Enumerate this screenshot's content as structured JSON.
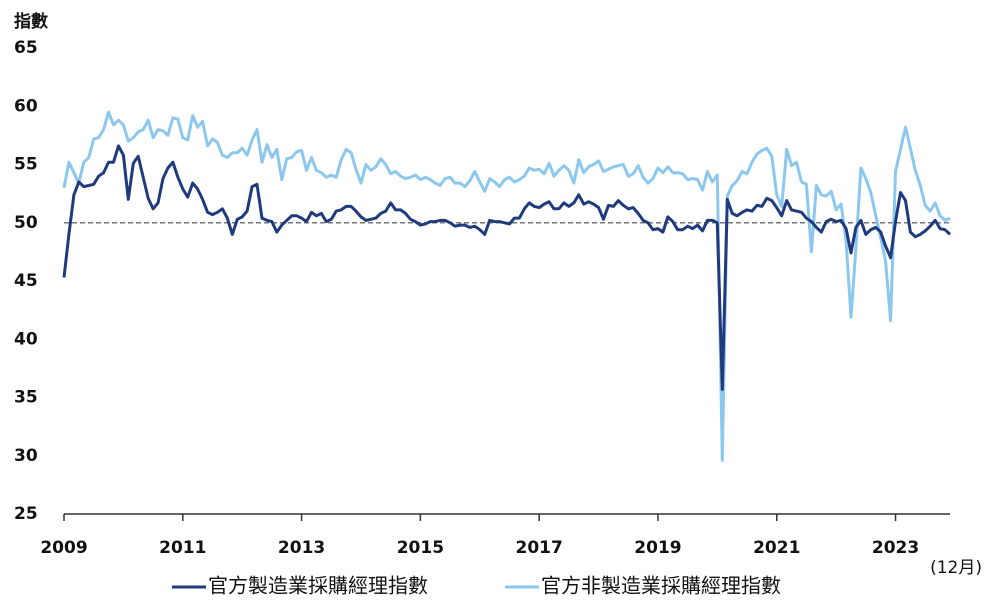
{
  "chart_data": {
    "type": "line",
    "y_label": "指數",
    "annotation": "(12月)",
    "xlim": [
      2009,
      2023.917
    ],
    "xticks": [
      2009,
      2011,
      2013,
      2015,
      2017,
      2019,
      2021,
      2023
    ],
    "ylim": [
      25,
      65
    ],
    "yticks": [
      25,
      30,
      35,
      40,
      45,
      50,
      55,
      60,
      65
    ],
    "reference_line": 50,
    "legend": "bottom",
    "x": [
      2009,
      2009.083,
      2009.167,
      2009.25,
      2009.333,
      2009.417,
      2009.5,
      2009.583,
      2009.667,
      2009.75,
      2009.833,
      2009.917,
      2010,
      2010.083,
      2010.167,
      2010.25,
      2010.333,
      2010.417,
      2010.5,
      2010.583,
      2010.667,
      2010.75,
      2010.833,
      2010.917,
      2011,
      2011.083,
      2011.167,
      2011.25,
      2011.333,
      2011.417,
      2011.5,
      2011.583,
      2011.667,
      2011.75,
      2011.833,
      2011.917,
      2012,
      2012.083,
      2012.167,
      2012.25,
      2012.333,
      2012.417,
      2012.5,
      2012.583,
      2012.667,
      2012.75,
      2012.833,
      2012.917,
      2013,
      2013.083,
      2013.167,
      2013.25,
      2013.333,
      2013.417,
      2013.5,
      2013.583,
      2013.667,
      2013.75,
      2013.833,
      2013.917,
      2014,
      2014.083,
      2014.167,
      2014.25,
      2014.333,
      2014.417,
      2014.5,
      2014.583,
      2014.667,
      2014.75,
      2014.833,
      2014.917,
      2015,
      2015.083,
      2015.167,
      2015.25,
      2015.333,
      2015.417,
      2015.5,
      2015.583,
      2015.667,
      2015.75,
      2015.833,
      2015.917,
      2016,
      2016.083,
      2016.167,
      2016.25,
      2016.333,
      2016.417,
      2016.5,
      2016.583,
      2016.667,
      2016.75,
      2016.833,
      2016.917,
      2017,
      2017.083,
      2017.167,
      2017.25,
      2017.333,
      2017.417,
      2017.5,
      2017.583,
      2017.667,
      2017.75,
      2017.833,
      2017.917,
      2018,
      2018.083,
      2018.167,
      2018.25,
      2018.333,
      2018.417,
      2018.5,
      2018.583,
      2018.667,
      2018.75,
      2018.833,
      2018.917,
      2019,
      2019.083,
      2019.167,
      2019.25,
      2019.333,
      2019.417,
      2019.5,
      2019.583,
      2019.667,
      2019.75,
      2019.833,
      2019.917,
      2020,
      2020.083,
      2020.167,
      2020.25,
      2020.333,
      2020.417,
      2020.5,
      2020.583,
      2020.667,
      2020.75,
      2020.833,
      2020.917,
      2021,
      2021.083,
      2021.167,
      2021.25,
      2021.333,
      2021.417,
      2021.5,
      2021.583,
      2021.667,
      2021.75,
      2021.833,
      2021.917,
      2022,
      2022.083,
      2022.167,
      2022.25,
      2022.333,
      2022.417,
      2022.5,
      2022.583,
      2022.667,
      2022.75,
      2022.833,
      2022.917,
      2023,
      2023.083,
      2023.167,
      2023.25,
      2023.333,
      2023.417,
      2023.5,
      2023.583,
      2023.667,
      2023.75,
      2023.833,
      2023.917
    ],
    "series": [
      {
        "name": "官方製造業採購經理指數",
        "color": "#1f3b7d",
        "values": [
          45.3,
          49.0,
          52.4,
          53.5,
          53.1,
          53.2,
          53.3,
          54.0,
          54.3,
          55.2,
          55.2,
          56.6,
          55.8,
          52.0,
          55.1,
          55.7,
          53.9,
          52.1,
          51.2,
          51.7,
          53.8,
          54.7,
          55.2,
          53.9,
          52.9,
          52.2,
          53.4,
          52.9,
          52.0,
          50.9,
          50.7,
          50.9,
          51.2,
          50.4,
          49.0,
          50.3,
          50.5,
          51.0,
          53.1,
          53.3,
          50.4,
          50.2,
          50.1,
          49.2,
          49.8,
          50.2,
          50.6,
          50.6,
          50.4,
          50.1,
          50.9,
          50.6,
          50.8,
          50.1,
          50.3,
          51.0,
          51.1,
          51.4,
          51.4,
          51.0,
          50.5,
          50.2,
          50.3,
          50.4,
          50.8,
          51.0,
          51.7,
          51.1,
          51.1,
          50.8,
          50.3,
          50.1,
          49.8,
          49.9,
          50.1,
          50.1,
          50.2,
          50.2,
          50.0,
          49.7,
          49.8,
          49.8,
          49.6,
          49.7,
          49.4,
          49.0,
          50.2,
          50.1,
          50.1,
          50.0,
          49.9,
          50.4,
          50.4,
          51.2,
          51.7,
          51.4,
          51.3,
          51.6,
          51.8,
          51.2,
          51.2,
          51.7,
          51.4,
          51.7,
          52.4,
          51.6,
          51.8,
          51.6,
          51.3,
          50.3,
          51.5,
          51.4,
          51.9,
          51.5,
          51.2,
          51.3,
          50.8,
          50.2,
          50.0,
          49.4,
          49.5,
          49.2,
          50.5,
          50.1,
          49.4,
          49.4,
          49.7,
          49.5,
          49.8,
          49.3,
          50.2,
          50.2,
          50.0,
          35.7,
          52.0,
          50.8,
          50.6,
          50.9,
          51.1,
          51.0,
          51.5,
          51.4,
          52.1,
          51.9,
          51.3,
          50.6,
          51.9,
          51.1,
          51.0,
          50.9,
          50.4,
          50.1,
          49.6,
          49.2,
          50.1,
          50.3,
          50.1,
          50.2,
          49.5,
          47.4,
          49.6,
          50.2,
          49.0,
          49.4,
          49.6,
          49.2,
          48.0,
          47.0,
          50.1,
          52.6,
          51.9,
          49.2,
          48.8,
          49.0,
          49.3,
          49.7,
          50.2,
          49.5,
          49.4,
          49.0
        ]
      },
      {
        "name": "官方非製造業採購經理指數",
        "color": "#8cc8ee",
        "values": [
          53.0,
          55.2,
          54.3,
          53.4,
          55.2,
          55.6,
          57.2,
          57.3,
          58.0,
          59.5,
          58.4,
          58.8,
          58.4,
          57.0,
          57.3,
          57.8,
          58.0,
          58.8,
          57.3,
          58.0,
          57.9,
          57.5,
          59.0,
          58.9,
          57.3,
          57.1,
          59.2,
          58.2,
          58.7,
          56.6,
          57.2,
          56.9,
          55.8,
          55.6,
          56.0,
          56.0,
          56.4,
          55.8,
          57.1,
          58.0,
          55.2,
          56.7,
          55.6,
          56.3,
          53.7,
          55.5,
          55.6,
          56.1,
          56.2,
          54.5,
          55.6,
          54.5,
          54.3,
          53.9,
          54.1,
          53.9,
          55.4,
          56.3,
          56.0,
          54.6,
          53.4,
          55.0,
          54.5,
          54.8,
          55.5,
          55.0,
          54.2,
          54.4,
          54.0,
          53.8,
          53.9,
          54.1,
          53.7,
          53.9,
          53.7,
          53.4,
          53.2,
          53.8,
          53.9,
          53.4,
          53.4,
          53.1,
          53.6,
          54.4,
          53.5,
          52.7,
          53.8,
          53.5,
          53.1,
          53.7,
          53.9,
          53.5,
          53.7,
          54.0,
          54.7,
          54.5,
          54.6,
          54.2,
          55.1,
          54.0,
          54.5,
          54.9,
          54.5,
          53.4,
          55.4,
          54.3,
          54.8,
          55.0,
          55.3,
          54.4,
          54.6,
          54.8,
          54.9,
          55.0,
          54.0,
          54.2,
          54.9,
          53.9,
          53.4,
          53.8,
          54.7,
          54.3,
          54.8,
          54.3,
          54.3,
          54.2,
          53.7,
          53.8,
          53.7,
          52.8,
          54.4,
          53.5,
          54.1,
          29.6,
          52.3,
          53.2,
          53.6,
          54.4,
          54.2,
          55.2,
          55.9,
          56.2,
          56.4,
          55.7,
          52.4,
          51.4,
          56.3,
          54.9,
          55.2,
          53.5,
          53.3,
          47.5,
          53.2,
          52.4,
          52.3,
          52.7,
          51.1,
          51.6,
          48.4,
          41.9,
          47.8,
          54.7,
          53.8,
          52.6,
          50.6,
          48.7,
          46.7,
          41.6,
          54.4,
          56.3,
          58.2,
          56.4,
          54.5,
          53.2,
          51.5,
          51.0,
          51.7,
          50.6,
          50.2,
          50.4
        ]
      }
    ]
  }
}
